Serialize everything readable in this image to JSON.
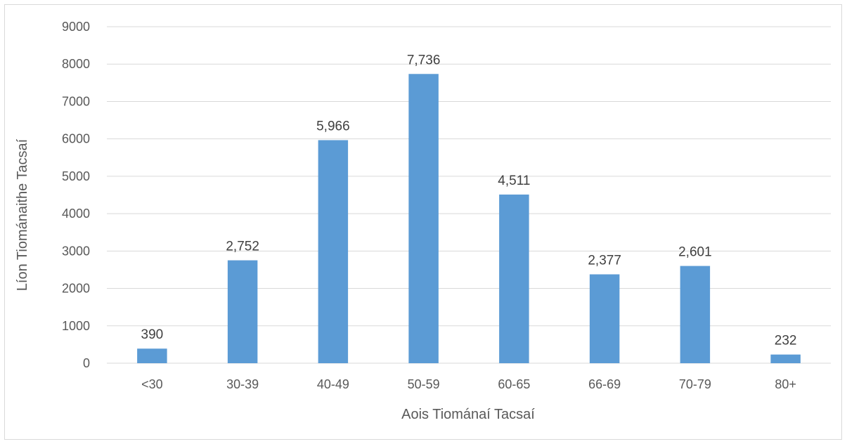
{
  "chart_data": {
    "type": "bar",
    "categories": [
      "<30",
      "30-39",
      "40-49",
      "50-59",
      "60-65",
      "66-69",
      "70-79",
      "80+"
    ],
    "values": [
      390,
      2752,
      5966,
      7736,
      4511,
      2377,
      2601,
      232
    ],
    "data_labels": [
      "390",
      "2,752",
      "5,966",
      "7,736",
      "4,511",
      "2,377",
      "2,601",
      "232"
    ],
    "xlabel": "Aois Tiománaí Tacsaí",
    "ylabel": "Líon Tiománaithe Tacsaí",
    "ylim": [
      0,
      9000
    ],
    "yticks": [
      "0",
      "1000",
      "2000",
      "3000",
      "4000",
      "5000",
      "6000",
      "7000",
      "8000",
      "9000"
    ],
    "grid": true,
    "bar_color": "#5b9bd5",
    "gridline_color": "#d9d9d9"
  }
}
